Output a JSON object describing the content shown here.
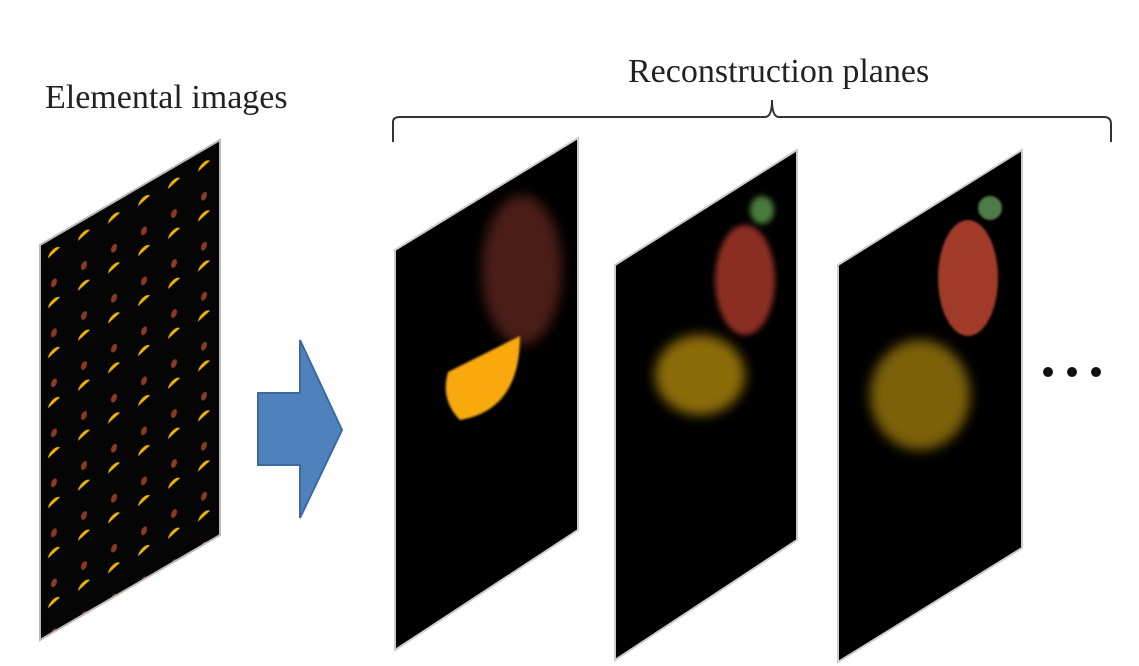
{
  "labels": {
    "elemental": "Elemental images",
    "reconstruction": "Reconstruction planes"
  }
}
